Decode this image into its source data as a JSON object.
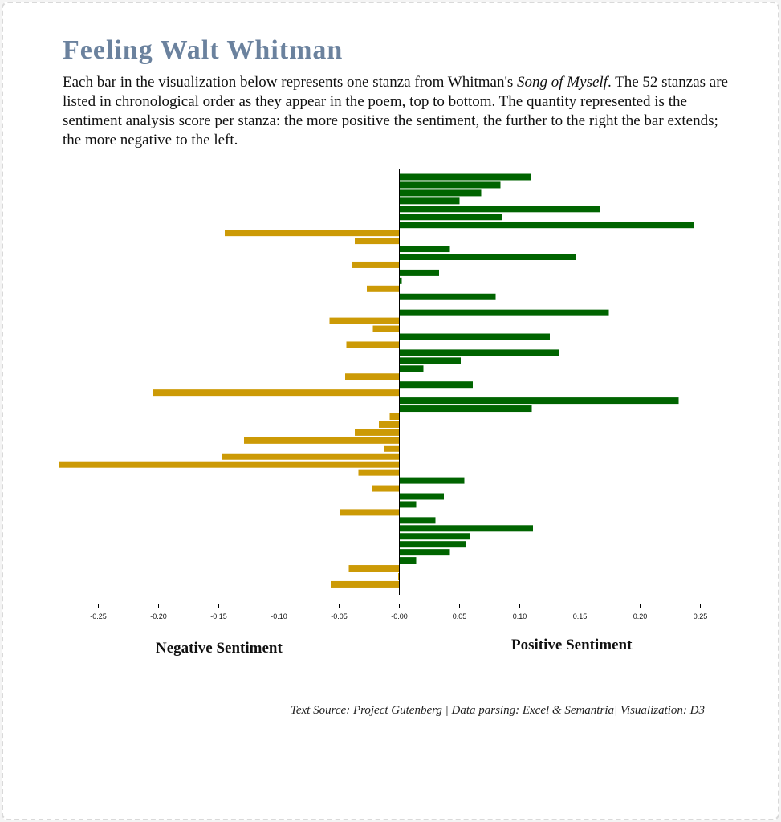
{
  "page": {
    "title": "Feeling Walt Whitman",
    "description_before": "Each bar in the visualization below represents one stanza from Whitman's ",
    "description_italic": "Song of Myself",
    "description_after": ".  The 52 stanzas are listed in chronological order as they appear in the poem, top to bottom. The quantity represented is the sentiment analysis score per stanza: the more positive the sentiment, the further to the right the bar extends; the more negative to the left.",
    "negative_label": "Negative Sentiment",
    "positive_label": "Positive Sentiment",
    "source": "Text Source: Project Gutenberg | Data parsing: Excel & Semantria| Visualization: D3"
  },
  "chart_data": {
    "type": "bar",
    "orientation": "horizontal",
    "x_ticks": [
      -0.25,
      -0.2,
      -0.15,
      -0.1,
      -0.05,
      -0.0,
      0.05,
      0.1,
      0.15,
      0.2,
      0.25
    ],
    "x_tick_labels": [
      "-0.25",
      "-0.20",
      "-0.15",
      "-0.10",
      "-0.05",
      "-0.00",
      "0.05",
      "0.10",
      "0.15",
      "0.20",
      "0.25"
    ],
    "xlim": [
      -0.283,
      0.25
    ],
    "positive_color": "#006400",
    "negative_color": "#cc9a06",
    "values": [
      0.109,
      0.084,
      0.068,
      0.05,
      0.167,
      0.085,
      0.245,
      -0.145,
      -0.037,
      0.042,
      0.147,
      -0.039,
      0.033,
      0.002,
      -0.027,
      0.08,
      0.0,
      0.174,
      -0.058,
      -0.022,
      0.125,
      -0.044,
      0.133,
      0.051,
      0.02,
      -0.045,
      0.061,
      -0.205,
      0.232,
      0.11,
      -0.008,
      -0.017,
      -0.037,
      -0.129,
      -0.013,
      -0.147,
      -0.283,
      -0.034,
      0.054,
      -0.023,
      0.037,
      0.014,
      -0.049,
      0.03,
      0.111,
      0.059,
      0.055,
      0.042,
      0.014,
      -0.042,
      -0.001,
      -0.057
    ]
  }
}
